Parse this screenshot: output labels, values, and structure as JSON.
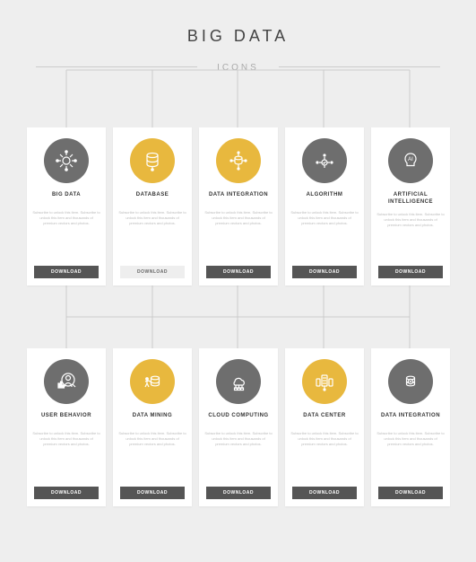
{
  "header": {
    "title": "BIG DATA",
    "subtitle": "ICONS"
  },
  "layout": {
    "background_color": "#eeeeee",
    "card_bg": "#ffffff",
    "connector_color": "#cccccc",
    "grid": {
      "cols": 5,
      "rows": 2
    }
  },
  "desc_text": "Subscribe to unlock this item. Subscribe to unlock this item and thousands of premium vectors and photos.",
  "button_label": "DOWNLOAD",
  "button_styles": {
    "dark": {
      "bg": "#555555",
      "fg": "#ffffff"
    },
    "light": {
      "bg": "#eeeeee",
      "fg": "#666666"
    }
  },
  "cards": [
    {
      "id": "big-data",
      "label": "BIG DATA",
      "circle_color": "#6e6e6e",
      "icon": "bigdata",
      "btn": "dark"
    },
    {
      "id": "database",
      "label": "DATABASE",
      "circle_color": "#e8b83e",
      "icon": "database",
      "btn": "light"
    },
    {
      "id": "data-integration",
      "label": "DATA INTEGRATION",
      "circle_color": "#e8b83e",
      "icon": "integration",
      "btn": "dark"
    },
    {
      "id": "algorithm",
      "label": "ALGORITHM",
      "circle_color": "#6e6e6e",
      "icon": "algorithm",
      "btn": "dark"
    },
    {
      "id": "artificial-intelligence",
      "label": "ARTIFICIAL INTELLIGENCE",
      "circle_color": "#6e6e6e",
      "icon": "ai",
      "btn": "dark"
    },
    {
      "id": "user-behavior",
      "label": "USER BEHAVIOR",
      "circle_color": "#6e6e6e",
      "icon": "behavior",
      "btn": "dark"
    },
    {
      "id": "data-mining",
      "label": "DATA MINING",
      "circle_color": "#e8b83e",
      "icon": "mining",
      "btn": "dark"
    },
    {
      "id": "cloud-computing",
      "label": "CLOUD COMPUTING",
      "circle_color": "#6e6e6e",
      "icon": "cloud",
      "btn": "dark"
    },
    {
      "id": "data-center",
      "label": "DATA CENTER",
      "circle_color": "#e8b83e",
      "icon": "datacenter",
      "btn": "dark"
    },
    {
      "id": "data-integration-2",
      "label": "DATA INTEGRATION",
      "circle_color": "#6e6e6e",
      "icon": "integration2",
      "btn": "dark"
    }
  ],
  "icons_svg": {
    "bigdata": "<g stroke='#fff' stroke-width='1.2' fill='none'><circle cx='12' cy='12' r='4'/><line x1='12' y1='2' x2='12' y2='6'/><line x1='12' y1='18' x2='12' y2='22'/><line x1='2' y1='12' x2='6' y2='12'/><line x1='18' y1='12' x2='22' y2='12'/><line x1='5' y1='5' x2='8' y2='8'/><line x1='16' y1='16' x2='19' y2='19'/><line x1='19' y1='5' x2='16' y2='8'/><line x1='8' y1='16' x2='5' y2='19'/><circle cx='12' cy='2' r='1.2' fill='#fff'/><circle cx='12' cy='22' r='1.2' fill='#fff'/><circle cx='2' cy='12' r='1.2' fill='#fff'/><circle cx='22' cy='12' r='1.2' fill='#fff'/></g>",
    "database": "<g stroke='#fff' stroke-width='1.2' fill='none'><ellipse cx='12' cy='6' rx='6' ry='2.5'/><path d='M6 6v10c0 1.4 2.7 2.5 6 2.5s6-1.1 6-2.5V6'/><path d='M6 11c0 1.4 2.7 2.5 6 2.5s6-1.1 6-2.5'/><line x1='12' y1='18.5' x2='12' y2='22'/><circle cx='12' cy='22' r='1.2' fill='#fff'/></g>",
    "integration": "<g stroke='#fff' stroke-width='1.2' fill='none'><ellipse cx='12' cy='9' rx='4' ry='1.8'/><path d='M8 9v5c0 1 1.8 1.8 4 1.8s4-0.8 4-1.8V9'/><line x1='12' y1='3' x2='12' y2='7'/><line x1='4' y1='12' x2='8' y2='12'/><line x1='16' y1='12' x2='20' y2='12'/><line x1='12' y1='16' x2='12' y2='21'/><circle cx='12' cy='3' r='1' fill='#fff'/><circle cx='4' cy='12' r='1' fill='#fff'/><circle cx='20' cy='12' r='1' fill='#fff'/><circle cx='12' cy='21' r='1' fill='#fff'/></g>",
    "algorithm": "<g stroke='#fff' stroke-width='1.2' fill='none'><circle cx='12' cy='14' r='3'/><path d='M12 11v-3M9 14h-3M15 14h3M12 17v3'/><circle cx='12' cy='6' r='1' fill='#fff'/><circle cx='4' cy='14' r='1' fill='#fff'/><circle cx='20' cy='14' r='1' fill='#fff'/><path d='M10.5 14l1 1 2-2'/></g>",
    "ai": "<g stroke='#fff' stroke-width='1.2' fill='none'><path d='M12 4c-3.5 0-6 2.5-6 6 0 2 1 3.5 2 4.5v3h8v-3c1-1 2-2.5 2-4.5 0-3.5-2.5-6-6-6z'/><text x='12' y='12' font-size='6' fill='#fff' text-anchor='middle' font-family='Arial' stroke='none'>AI</text></g>",
    "behavior": "<g stroke='#fff' stroke-width='1.2' fill='none'><circle cx='14' cy='8' r='2.5'/><path d='M10 18c0-2.5 1.8-4.5 4-4.5s4 2 4 4.5'/><circle cx='14' cy='10' r='7'/><line x1='19' y1='15' x2='22' y2='18'/><rect x='3' y='14' width='1.5' height='5' fill='#fff'/><rect x='5.5' y='12' width='1.5' height='7' fill='#fff'/><rect x='8' y='16' width='1.5' height='3' fill='#fff'/></g>",
    "mining": "<g stroke='#fff' stroke-width='1.2' fill='none'><ellipse cx='15' cy='8' rx='4.5' ry='1.8'/><path d='M10.5 8v7c0 1 2 1.8 4.5 1.8s4.5-0.8 4.5-1.8V8'/><path d='M10.5 12c0 1 2 1.8 4.5 1.8s4.5-0.8 4.5-1.8'/><circle cx='6' cy='9' r='1.3' fill='#fff'/><line x1='6' y1='10' x2='6' y2='14'/><line x1='4' y1='12' x2='8' y2='11'/><line x1='6' y1='14' x2='4' y2='18'/><line x1='6' y1='14' x2='8' y2='18'/><line x1='8' y1='11' x2='11' y2='13'/></g>",
    "cloud": "<g stroke='#fff' stroke-width='1.2' fill='none'><path d='M8 12a4 4 0 0 1 7.5-1.5A3 3 0 0 1 17 16H8a2.5 2.5 0 0 1 0-4z'/><line x1='9' y1='16' x2='9' y2='20'/><line x1='12.5' y1='16' x2='12.5' y2='20'/><line x1='16' y1='16' x2='16' y2='20'/><rect x='7.5' y='19' width='3' height='2.5'/><rect x='11' y='19' width='3' height='2.5'/><rect x='14.5' y='19' width='3' height='2.5'/></g>",
    "datacenter": "<g stroke='#fff' stroke-width='1.2' fill='none'><rect x='9' y='5' width='6' height='12' rx='1'/><line x1='10' y1='8' x2='14' y2='8'/><line x1='10' y1='11' x2='14' y2='11'/><line x1='10' y1='14' x2='14' y2='14'/><rect x='3' y='9' width='4' height='8' rx='1'/><rect x='17' y='9' width='4' height='8' rx='1'/><line x1='12' y1='17' x2='12' y2='21'/><circle cx='12' cy='21' r='1' fill='#fff'/></g>",
    "integration2": "<g stroke='#fff' stroke-width='1.2' fill='none'><ellipse cx='12' cy='8' rx='4.5' ry='1.8'/><path d='M7.5 8v7c0 1 2 1.8 4.5 1.8s4.5-0.8 4.5-1.8V8'/><path d='M7.5 12c0 1 2 1.8 4.5 1.8s4.5-0.8 4.5-1.8'/><circle cx='12' cy='12' r='2.5' fill='#6e6e6e'/><path d='M12 9.5v-1M12 14.5v1M9.5 12h-1M14.5 12h1' stroke-width='0.8'/><circle cx='12' cy='12' r='1' fill='#fff' stroke='none'/></g>"
  }
}
